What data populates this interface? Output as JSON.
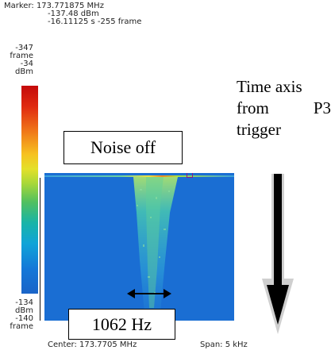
{
  "marker": {
    "line1": "Marker: 173.771875 MHz",
    "line2": "-137.48 dBm",
    "line3": "-16.11125 s  -255 frame"
  },
  "colorbar": {
    "top_frame_value": "-347",
    "top_frame_unit": "frame",
    "top_dbm_value": "-34",
    "top_dbm_unit": "dBm",
    "bottom_dbm_value": "-134",
    "bottom_dbm_unit": "dBm",
    "bottom_frame_value": "-140",
    "bottom_frame_unit": "frame",
    "gradient_colors": [
      "#c40a0a",
      "#f07818",
      "#f6c220",
      "#a8d838",
      "#18b4a8",
      "#1478d8",
      "#1a64c8"
    ]
  },
  "waterfall": {
    "center_label": "Center: 173.7705 MHz",
    "span_label": "Span: 5 kHz",
    "background_color": "#1a6ed3"
  },
  "annotations": {
    "noise_label": "Noise off",
    "bandwidth_label": "1062 Hz",
    "time_note_line1": "Time axis",
    "time_note_word1": "from",
    "time_note_word2": "P3",
    "time_note_line3": "trigger"
  }
}
